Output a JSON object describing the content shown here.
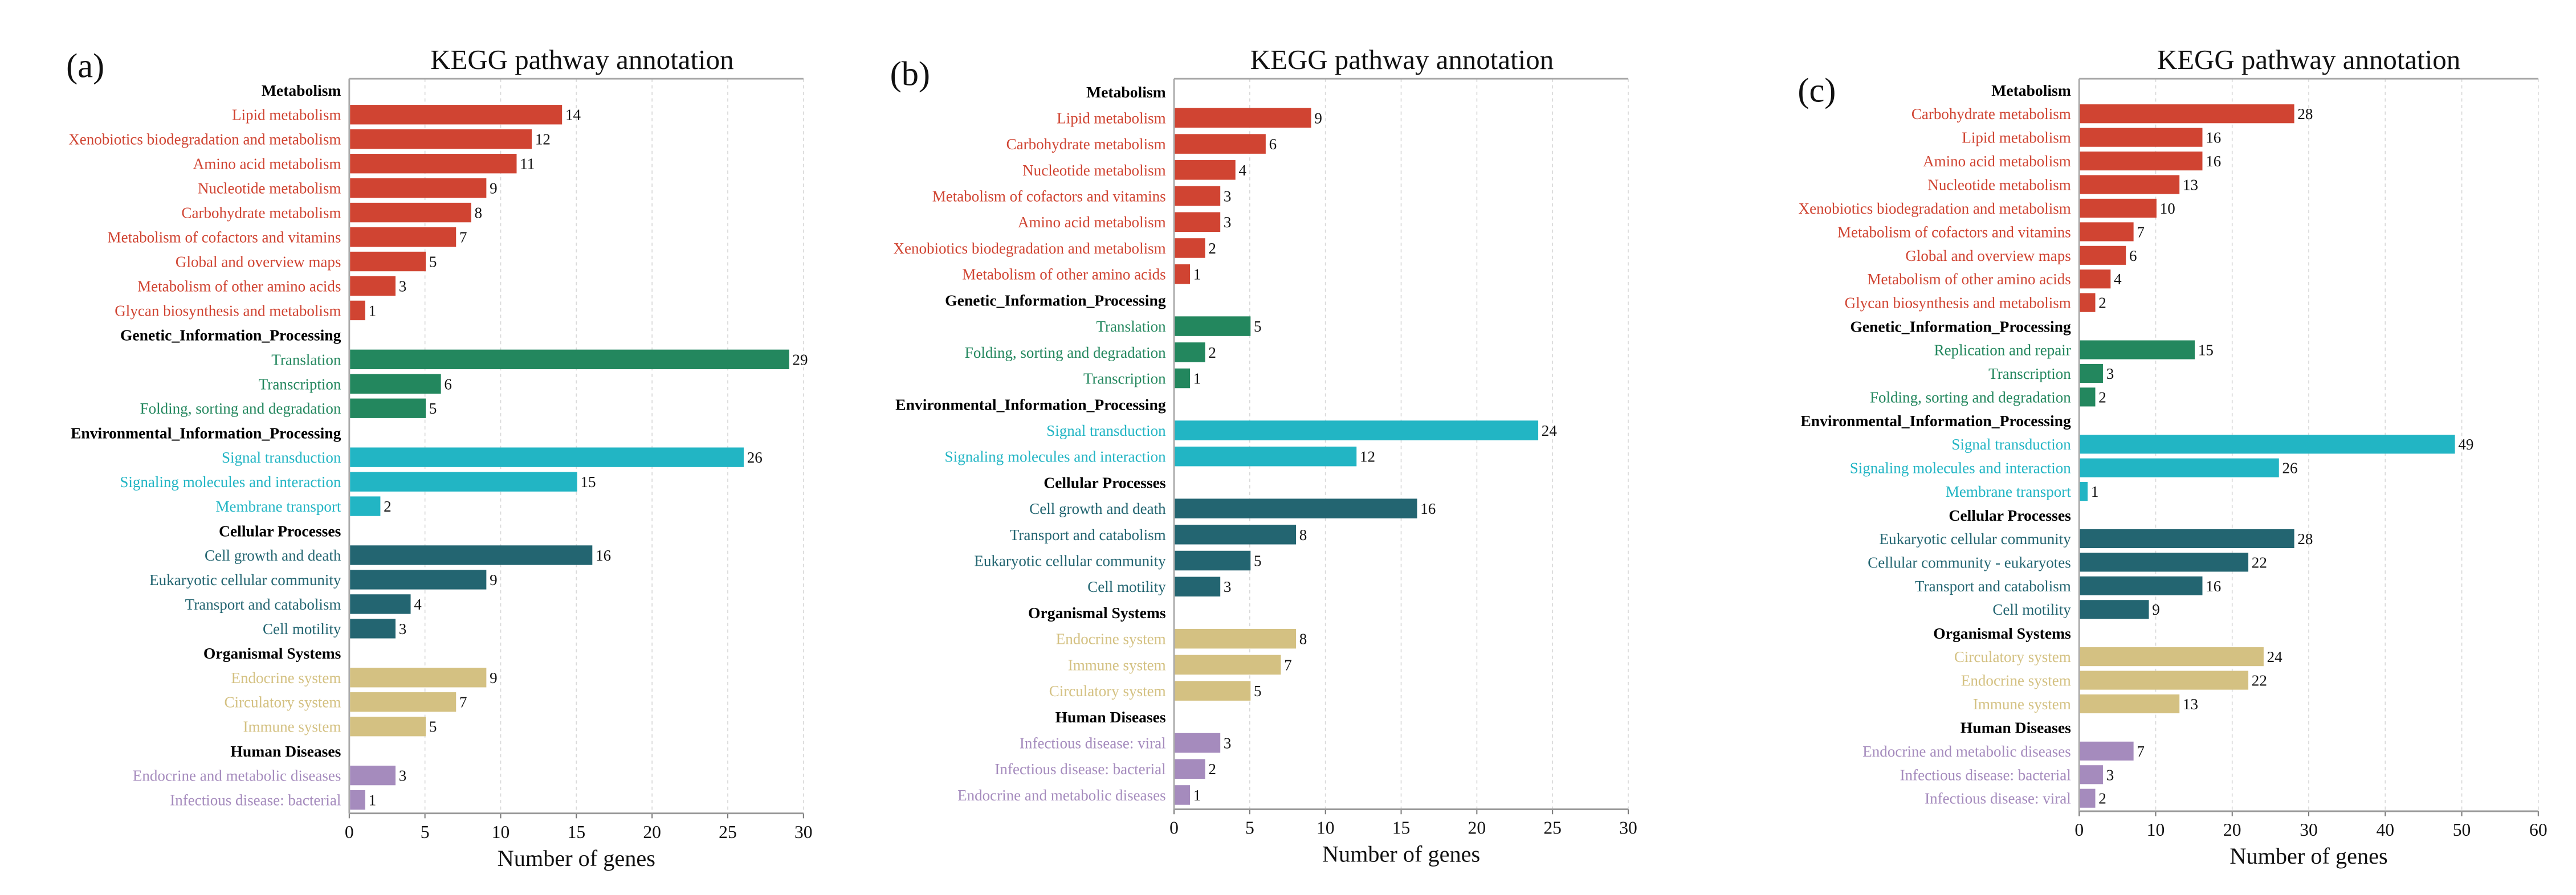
{
  "chart_data": [
    {
      "type": "bar",
      "orientation": "horizontal",
      "panel_label": "(a)",
      "title": "KEGG pathway annotation",
      "xlabel": "Number of genes",
      "xlim": [
        0,
        30
      ],
      "xticks": [
        "0",
        "5",
        "10",
        "15",
        "20",
        "25",
        "30"
      ],
      "grid": "vertical dashed",
      "groups": [
        {
          "name": "Metabolism",
          "color": "#d04432",
          "items": [
            {
              "label": "Lipid metabolism",
              "value": 14
            },
            {
              "label": "Xenobiotics biodegradation and metabolism",
              "value": 12
            },
            {
              "label": "Amino acid metabolism",
              "value": 11
            },
            {
              "label": "Nucleotide metabolism",
              "value": 9
            },
            {
              "label": "Carbohydrate metabolism",
              "value": 8
            },
            {
              "label": "Metabolism of cofactors and vitamins",
              "value": 7
            },
            {
              "label": "Global and overview maps",
              "value": 5
            },
            {
              "label": "Metabolism of other amino acids",
              "value": 3
            },
            {
              "label": "Glycan biosynthesis and metabolism",
              "value": 1
            }
          ]
        },
        {
          "name": "Genetic_Information_Processing",
          "color": "#23875e",
          "items": [
            {
              "label": "Translation",
              "value": 29
            },
            {
              "label": "Transcription",
              "value": 6
            },
            {
              "label": "Folding, sorting and degradation",
              "value": 5
            }
          ]
        },
        {
          "name": "Environmental_Information_Processing",
          "color": "#22b5c4",
          "items": [
            {
              "label": "Signal transduction",
              "value": 26
            },
            {
              "label": "Signaling molecules and interaction",
              "value": 15
            },
            {
              "label": "Membrane transport",
              "value": 2
            }
          ]
        },
        {
          "name": "Cellular Processes",
          "color": "#236571",
          "items": [
            {
              "label": "Cell growth and death",
              "value": 16
            },
            {
              "label": "Eukaryotic cellular community",
              "value": 9
            },
            {
              "label": "Transport and catabolism",
              "value": 4
            },
            {
              "label": "Cell motility",
              "value": 3
            }
          ]
        },
        {
          "name": "Organismal Systems",
          "color": "#d4c182",
          "items": [
            {
              "label": "Endocrine system",
              "value": 9
            },
            {
              "label": "Circulatory system",
              "value": 7
            },
            {
              "label": "Immune system",
              "value": 5
            }
          ]
        },
        {
          "name": "Human Diseases",
          "color": "#a58bbd",
          "items": [
            {
              "label": "Endocrine and metabolic diseases",
              "value": 3
            },
            {
              "label": "Infectious disease: bacterial",
              "value": 1
            }
          ]
        }
      ]
    },
    {
      "type": "bar",
      "orientation": "horizontal",
      "panel_label": "(b)",
      "title": "KEGG pathway annotation",
      "xlabel": "Number of genes",
      "xlim": [
        0,
        30
      ],
      "xticks": [
        "0",
        "5",
        "10",
        "15",
        "20",
        "25",
        "30"
      ],
      "grid": "vertical dashed",
      "groups": [
        {
          "name": "Metabolism",
          "color": "#d04432",
          "items": [
            {
              "label": "Lipid metabolism",
              "value": 9
            },
            {
              "label": "Carbohydrate metabolism",
              "value": 6
            },
            {
              "label": "Nucleotide metabolism",
              "value": 4
            },
            {
              "label": "Metabolism of cofactors and vitamins",
              "value": 3
            },
            {
              "label": "Amino acid metabolism",
              "value": 3
            },
            {
              "label": "Xenobiotics biodegradation and metabolism",
              "value": 2
            },
            {
              "label": "Metabolism of other amino acids",
              "value": 1
            }
          ]
        },
        {
          "name": "Genetic_Information_Processing",
          "color": "#23875e",
          "items": [
            {
              "label": "Translation",
              "value": 5
            },
            {
              "label": "Folding, sorting and degradation",
              "value": 2
            },
            {
              "label": "Transcription",
              "value": 1
            }
          ]
        },
        {
          "name": "Environmental_Information_Processing",
          "color": "#22b5c4",
          "items": [
            {
              "label": "Signal transduction",
              "value": 24
            },
            {
              "label": "Signaling molecules and interaction",
              "value": 12
            }
          ]
        },
        {
          "name": "Cellular Processes",
          "color": "#236571",
          "items": [
            {
              "label": "Cell growth and death",
              "value": 16
            },
            {
              "label": "Transport and catabolism",
              "value": 8
            },
            {
              "label": "Eukaryotic cellular community",
              "value": 5
            },
            {
              "label": "Cell motility",
              "value": 3
            }
          ]
        },
        {
          "name": "Organismal Systems",
          "color": "#d4c182",
          "items": [
            {
              "label": "Endocrine system",
              "value": 8
            },
            {
              "label": "Immune system",
              "value": 7
            },
            {
              "label": "Circulatory system",
              "value": 5
            }
          ]
        },
        {
          "name": "Human Diseases",
          "color": "#a58bbd",
          "items": [
            {
              "label": "Infectious disease: viral",
              "value": 3
            },
            {
              "label": "Infectious disease: bacterial",
              "value": 2
            },
            {
              "label": "Endocrine and metabolic diseases",
              "value": 1
            }
          ]
        }
      ]
    },
    {
      "type": "bar",
      "orientation": "horizontal",
      "panel_label": "(c)",
      "title": "KEGG pathway annotation",
      "xlabel": "Number of genes",
      "xlim": [
        0,
        60
      ],
      "xticks": [
        "0",
        "10",
        "20",
        "30",
        "40",
        "50",
        "60"
      ],
      "grid": "vertical dashed",
      "groups": [
        {
          "name": "Metabolism",
          "color": "#d04432",
          "items": [
            {
              "label": "Carbohydrate metabolism",
              "value": 28
            },
            {
              "label": "Lipid metabolism",
              "value": 16
            },
            {
              "label": "Amino acid metabolism",
              "value": 16
            },
            {
              "label": "Nucleotide metabolism",
              "value": 13
            },
            {
              "label": "Xenobiotics biodegradation and metabolism",
              "value": 10
            },
            {
              "label": "Metabolism of cofactors and vitamins",
              "value": 7
            },
            {
              "label": "Global and overview maps",
              "value": 6
            },
            {
              "label": "Metabolism of other amino acids",
              "value": 4
            },
            {
              "label": "Glycan biosynthesis and metabolism",
              "value": 2
            }
          ]
        },
        {
          "name": "Genetic_Information_Processing",
          "color": "#23875e",
          "items": [
            {
              "label": "Replication and repair",
              "value": 15
            },
            {
              "label": "Transcription",
              "value": 3
            },
            {
              "label": "Folding, sorting and degradation",
              "value": 2
            }
          ]
        },
        {
          "name": "Environmental_Information_Processing",
          "color": "#22b5c4",
          "items": [
            {
              "label": "Signal transduction",
              "value": 49
            },
            {
              "label": "Signaling molecules and interaction",
              "value": 26
            },
            {
              "label": "Membrane transport",
              "value": 1
            }
          ]
        },
        {
          "name": "Cellular Processes",
          "color": "#236571",
          "items": [
            {
              "label": "Eukaryotic cellular community",
              "value": 28
            },
            {
              "label": "Cellular community - eukaryotes",
              "value": 22
            },
            {
              "label": "Transport and catabolism",
              "value": 16
            },
            {
              "label": "Cell motility",
              "value": 9
            }
          ]
        },
        {
          "name": "Organismal Systems",
          "color": "#d4c182",
          "items": [
            {
              "label": "Circulatory system",
              "value": 24
            },
            {
              "label": "Endocrine system",
              "value": 22
            },
            {
              "label": "Immune system",
              "value": 13
            }
          ]
        },
        {
          "name": "Human Diseases",
          "color": "#a58bbd",
          "items": [
            {
              "label": "Endocrine and metabolic diseases",
              "value": 7
            },
            {
              "label": "Infectious disease: bacterial",
              "value": 3
            },
            {
              "label": "Infectious disease: viral",
              "value": 2
            }
          ]
        }
      ]
    }
  ]
}
